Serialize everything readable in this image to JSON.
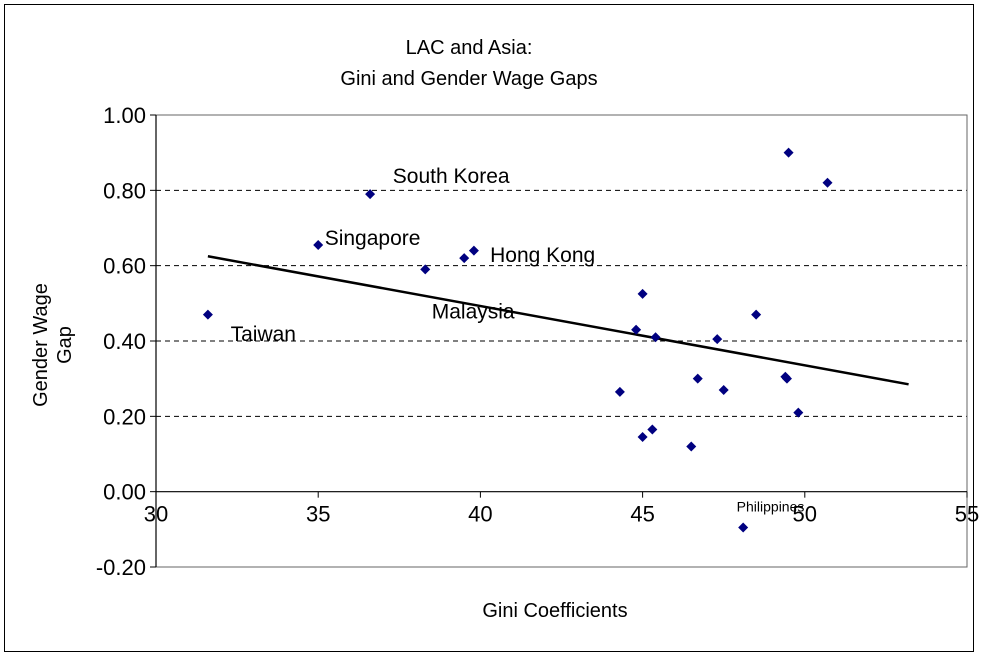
{
  "chart_data": {
    "type": "scatter",
    "title_lines": [
      "LAC and Asia:",
      "Gini and Gender Wage Gaps"
    ],
    "xlabel": "Gini Coefficients",
    "ylabel_lines": [
      "Gender Wage",
      "Gap"
    ],
    "xlim": [
      30,
      55
    ],
    "ylim": [
      -0.2,
      1.0
    ],
    "x_ticks": [
      "30",
      "35",
      "40",
      "45",
      "50",
      "55"
    ],
    "y_ticks": [
      "-0.20",
      "0.00",
      "0.20",
      "0.40",
      "0.60",
      "0.80",
      "1.00"
    ],
    "grid": "horizontal-dashed",
    "marker_color": "#000080",
    "series": [
      {
        "points": [
          {
            "x": 31.6,
            "y": 0.47
          },
          {
            "x": 35.0,
            "y": 0.655
          },
          {
            "x": 36.6,
            "y": 0.79
          },
          {
            "x": 38.3,
            "y": 0.59
          },
          {
            "x": 39.5,
            "y": 0.62
          },
          {
            "x": 39.8,
            "y": 0.64
          },
          {
            "x": 44.3,
            "y": 0.265
          },
          {
            "x": 44.8,
            "y": 0.43
          },
          {
            "x": 45.0,
            "y": 0.525
          },
          {
            "x": 45.0,
            "y": 0.145
          },
          {
            "x": 45.3,
            "y": 0.165
          },
          {
            "x": 45.4,
            "y": 0.41
          },
          {
            "x": 46.5,
            "y": 0.12
          },
          {
            "x": 46.7,
            "y": 0.3
          },
          {
            "x": 47.3,
            "y": 0.405
          },
          {
            "x": 47.5,
            "y": 0.27
          },
          {
            "x": 48.1,
            "y": -0.095
          },
          {
            "x": 48.5,
            "y": 0.47
          },
          {
            "x": 49.4,
            "y": 0.305
          },
          {
            "x": 49.45,
            "y": 0.3
          },
          {
            "x": 49.5,
            "y": 0.9
          },
          {
            "x": 49.8,
            "y": 0.21
          },
          {
            "x": 50.7,
            "y": 0.82
          }
        ]
      }
    ],
    "trendline": {
      "x": [
        31.6,
        53.2
      ],
      "y": [
        0.625,
        0.285
      ],
      "color": "#000000"
    },
    "annotations": [
      {
        "text": "South Korea",
        "x": 37.3,
        "y": 0.82,
        "size": "normal"
      },
      {
        "text": "Singapore",
        "x": 35.2,
        "y": 0.655,
        "size": "normal"
      },
      {
        "text": "Hong Kong",
        "x": 40.3,
        "y": 0.61,
        "size": "normal"
      },
      {
        "text": "Malaysia",
        "x": 38.5,
        "y": 0.46,
        "size": "normal"
      },
      {
        "text": "Taiwan",
        "x": 32.3,
        "y": 0.4,
        "size": "normal"
      },
      {
        "text": "Philippines",
        "x": 47.9,
        "y": -0.053,
        "size": "small"
      }
    ]
  }
}
